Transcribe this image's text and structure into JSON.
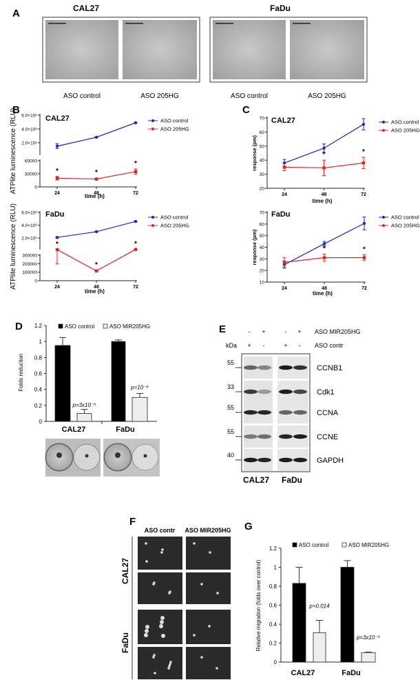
{
  "panels": {
    "A": {
      "label": "A",
      "cell_lines": [
        "CAL27",
        "FaDu"
      ],
      "conditions": [
        "ASO control",
        "ASO 205HG",
        "ASO control",
        "ASO 205HG"
      ]
    },
    "B": {
      "label": "B"
    },
    "C": {
      "label": "C"
    },
    "D": {
      "label": "D"
    },
    "E": {
      "label": "E",
      "row1_signs": [
        "-",
        "+",
        "-",
        "+"
      ],
      "row1_label": "ASO MIR205HG",
      "row2_signs": [
        "+",
        "-",
        "+",
        "-"
      ],
      "row2_label": "ASO contr",
      "kda_label": "kDa",
      "markers": [
        "55",
        "33",
        "55",
        "55",
        "40"
      ],
      "proteins": [
        "CCNB1",
        "Cdk1",
        "CCNA",
        "CCNE",
        "GAPDH"
      ],
      "cell_lines": [
        "CAL27",
        "FaDu"
      ]
    },
    "F": {
      "label": "F",
      "columns": [
        "ASO contr",
        "ASO MIR205HG"
      ],
      "rows": [
        "CAL27",
        "FaDu"
      ]
    },
    "G": {
      "label": "G"
    }
  },
  "colors": {
    "control_line": "#2121c4",
    "knockdown_line": "#e02222",
    "control_bar": "#000000",
    "knockdown_bar": "#eeeeee"
  },
  "chart_data": [
    {
      "panel": "B",
      "type": "line",
      "title": "CAL27",
      "xlabel": "time (h)",
      "ylabel": "ATPlite luminescence (RLU)",
      "x": [
        24,
        48,
        72
      ],
      "x_tick_labels": [
        "24",
        "48",
        "72"
      ],
      "axis_break": true,
      "y_ticks_upper": [
        {
          "value": 2000000,
          "label": "2.0×10⁶"
        },
        {
          "value": 4000000,
          "label": "4.0×10⁶"
        },
        {
          "value": 6000000,
          "label": "6.0×10⁶"
        }
      ],
      "y_ticks_lower": [
        {
          "value": 0,
          "label": "0"
        },
        {
          "value": 30000,
          "label": "30000"
        },
        {
          "value": 60000,
          "label": "60000"
        }
      ],
      "series": [
        {
          "name": "ASO control",
          "color": "#2121c4",
          "values": [
            1500000,
            2800000,
            4900000
          ],
          "errors": [
            350000,
            60000,
            60000
          ]
        },
        {
          "name": "ASO 205HG",
          "color": "#e02222",
          "values": [
            20000,
            18000,
            35000
          ],
          "errors": [
            4000,
            2500,
            6000
          ]
        }
      ],
      "significant": [
        true,
        true,
        true
      ],
      "legend": "right"
    },
    {
      "panel": "B",
      "type": "line",
      "title": "FaDu",
      "xlabel": "time (h)",
      "ylabel": "ATPlite luminescence (RLU)",
      "x": [
        24,
        48,
        72
      ],
      "x_tick_labels": [
        "24",
        "48",
        "72"
      ],
      "axis_break": true,
      "y_ticks_upper": [
        {
          "value": 2000000,
          "label": "2.0×10⁶"
        },
        {
          "value": 4000000,
          "label": "4.0×10⁶"
        },
        {
          "value": 6000000,
          "label": "6.0×10⁶"
        }
      ],
      "y_ticks_lower": [
        {
          "value": 0,
          "label": "0"
        },
        {
          "value": 100000,
          "label": "100000"
        },
        {
          "value": 200000,
          "label": "200000"
        },
        {
          "value": 300000,
          "label": "300000"
        }
      ],
      "series": [
        {
          "name": "ASO control",
          "color": "#2121c4",
          "values": [
            2100000,
            3000000,
            4600000
          ],
          "errors": [
            50000,
            50000,
            60000
          ]
        },
        {
          "name": "ASO 205HG",
          "color": "#e02222",
          "values": [
            205000,
            115000,
            235000
          ],
          "errors": [
            8000,
            8000,
            10000
          ]
        }
      ],
      "significant": [
        true,
        true,
        true
      ],
      "legend": "right"
    },
    {
      "panel": "C",
      "type": "line",
      "title": "CAL27",
      "xlabel": "time (h)",
      "ylabel": "response (pm)",
      "x": [
        24,
        48,
        72
      ],
      "x_tick_labels": [
        "24",
        "48",
        "72"
      ],
      "ylim": [
        20,
        70
      ],
      "y_ticks": [
        {
          "value": 20,
          "label": "20"
        },
        {
          "value": 30,
          "label": "30"
        },
        {
          "value": 40,
          "label": "40"
        },
        {
          "value": 50,
          "label": "50"
        },
        {
          "value": 60,
          "label": "60"
        },
        {
          "value": 70,
          "label": "70"
        }
      ],
      "series": [
        {
          "name": "ASO control",
          "color": "#2121c4",
          "values": [
            38,
            48.5,
            65.5
          ],
          "errors": [
            2.5,
            3,
            4
          ]
        },
        {
          "name": "ASO 205HG",
          "color": "#e02222",
          "values": [
            35,
            34.5,
            38
          ],
          "errors": [
            2.5,
            5.5,
            4
          ]
        }
      ],
      "significant": [
        false,
        true,
        true
      ],
      "legend": "right"
    },
    {
      "panel": "C",
      "type": "line",
      "title": "FaDu",
      "xlabel": "time (h)",
      "ylabel": "response (pm)",
      "x": [
        24,
        48,
        72
      ],
      "x_tick_labels": [
        "24",
        "48",
        "72"
      ],
      "ylim": [
        10,
        70
      ],
      "y_ticks": [
        {
          "value": 10,
          "label": "10"
        },
        {
          "value": 20,
          "label": "20"
        },
        {
          "value": 30,
          "label": "30"
        },
        {
          "value": 40,
          "label": "40"
        },
        {
          "value": 50,
          "label": "50"
        },
        {
          "value": 60,
          "label": "60"
        },
        {
          "value": 70,
          "label": "70"
        }
      ],
      "series": [
        {
          "name": "ASO control",
          "color": "#2121c4",
          "values": [
            25,
            43,
            60.5
          ],
          "errors": [
            3,
            2,
            5.5
          ]
        },
        {
          "name": "ASO 205HG",
          "color": "#e02222",
          "values": [
            27,
            31,
            31
          ],
          "errors": [
            4,
            3,
            2.5
          ]
        }
      ],
      "significant": [
        false,
        true,
        true
      ],
      "legend": "right"
    },
    {
      "panel": "D",
      "type": "bar",
      "ylabel": "Folds reduction",
      "categories": [
        "CAL27",
        "FaDu"
      ],
      "ylim": [
        0,
        1.2
      ],
      "y_ticks": [
        {
          "value": 0,
          "label": "0"
        },
        {
          "value": 0.2,
          "label": "0.2"
        },
        {
          "value": 0.4,
          "label": "0.4"
        },
        {
          "value": 0.6,
          "label": "0.6"
        },
        {
          "value": 0.8,
          "label": "0.8"
        },
        {
          "value": 1,
          "label": "1"
        },
        {
          "value": 1.2,
          "label": "1.2"
        }
      ],
      "series": [
        {
          "name": "ASO control",
          "color": "#000000",
          "values": [
            0.95,
            1.0
          ],
          "errors": [
            0.1,
            0.02
          ]
        },
        {
          "name": "ASO MIR205HG",
          "color": "#eeeeee",
          "values": [
            0.1,
            0.3
          ],
          "errors": [
            0.05,
            0.05
          ]
        }
      ],
      "p_values": [
        "p=3x10⁻⁵",
        "p=10⁻⁴"
      ],
      "legend": "top"
    },
    {
      "panel": "G",
      "type": "bar",
      "ylabel": "Relative migration  (folds over control)",
      "categories": [
        "CAL27",
        "FaDu"
      ],
      "ylim": [
        0,
        1.2
      ],
      "y_ticks": [
        {
          "value": 0,
          "label": "0"
        },
        {
          "value": 0.2,
          "label": "0.2"
        },
        {
          "value": 0.4,
          "label": "0.4"
        },
        {
          "value": 0.6,
          "label": "0.6"
        },
        {
          "value": 0.8,
          "label": "0.8"
        },
        {
          "value": 1,
          "label": "1"
        },
        {
          "value": 1.2,
          "label": "1.2"
        }
      ],
      "series": [
        {
          "name": "ASO control",
          "color": "#000000",
          "values": [
            0.83,
            1.0
          ],
          "errors": [
            0.17,
            0.07
          ]
        },
        {
          "name": "ASO MIR205HG",
          "color": "#eeeeee",
          "values": [
            0.31,
            0.1
          ],
          "errors": [
            0.13,
            0.005
          ]
        }
      ],
      "p_values": [
        "p=0.014",
        "p=3x10⁻⁵"
      ],
      "legend": "top"
    }
  ]
}
